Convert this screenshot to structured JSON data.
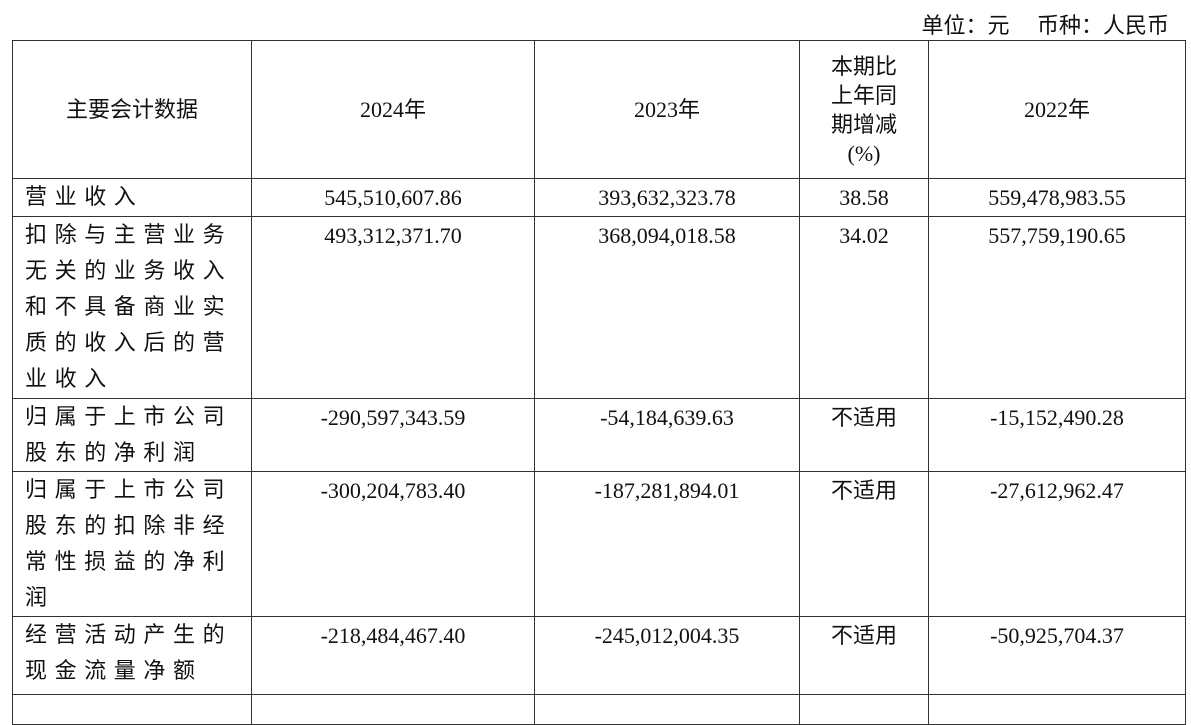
{
  "unit": {
    "unit_label": "单位：元",
    "currency_label": "币种：人民币"
  },
  "table": {
    "headers": [
      "主要会计数据",
      "2024年",
      "2023年",
      "本期比上年同期增减(%)",
      "2022年"
    ],
    "rows": [
      {
        "label": "营业收入",
        "v2024": "545,510,607.86",
        "v2023": "393,632,323.78",
        "change": "38.58",
        "v2022": "559,478,983.55"
      },
      {
        "label": "扣除与主营业务无关的业务收入和不具备商业实质的收入后的营业收入",
        "v2024": "493,312,371.70",
        "v2023": "368,094,018.58",
        "change": "34.02",
        "v2022": "557,759,190.65"
      },
      {
        "label": "归属于上市公司股东的净利润",
        "v2024": "-290,597,343.59",
        "v2023": "-54,184,639.63",
        "change": "不适用",
        "v2022": "-15,152,490.28"
      },
      {
        "label": "归属于上市公司股东的扣除非经常性损益的净利润",
        "v2024": "-300,204,783.40",
        "v2023": "-187,281,894.01",
        "change": "不适用",
        "v2022": "-27,612,962.47"
      },
      {
        "label": "经营活动产生的现金流量净额",
        "v2024": "-218,484,467.40",
        "v2023": "-245,012,004.35",
        "change": "不适用",
        "v2022": "-50,925,704.37"
      }
    ]
  }
}
